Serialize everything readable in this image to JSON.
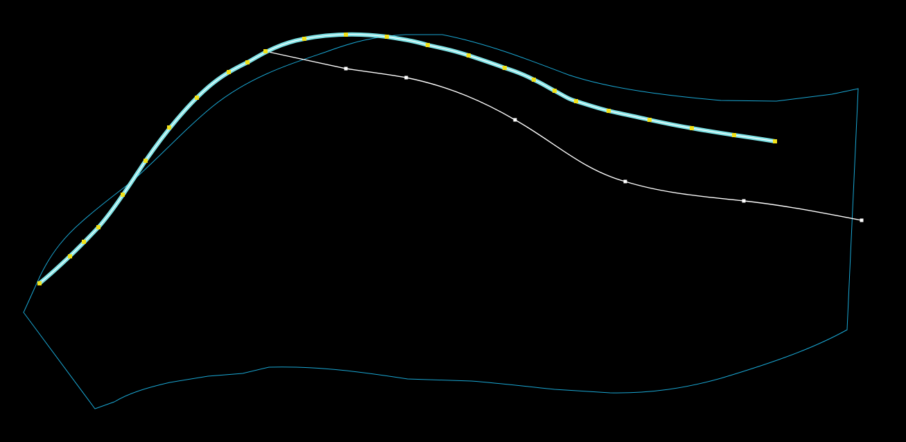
{
  "colors": {
    "background": "#000000",
    "boundary": "#1aa9d6",
    "selected_path": "#7fe3e6",
    "selected_path_core": "#ffffff",
    "control_points": "#f2e21a",
    "secondary_path": "#ffffff",
    "secondary_points": "#ffffff"
  },
  "icons": {
    "control_point": "square-handle-icon"
  },
  "elements": {
    "boundary": "region-boundary-polyline",
    "selected_path": "selected-curve-with-yellow-handles",
    "secondary_path": "unselected-curve-with-white-handles"
  }
}
